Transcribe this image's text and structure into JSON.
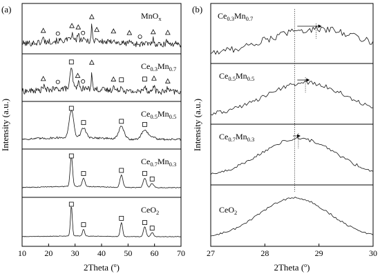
{
  "chart_data": [
    {
      "panel_label": "(a)",
      "type": "line",
      "xlabel_main": "2Theta (",
      "xlabel_sup": "o",
      "xlabel_end": ")",
      "ylabel": "Intensity (a.u.)",
      "xlim": [
        10,
        70
      ],
      "x_ticks": [
        10,
        20,
        30,
        40,
        50,
        60,
        70
      ],
      "series": [
        {
          "name": "MnOx",
          "label_parts": [
            {
              "t": "MnO"
            },
            {
              "t": "x",
              "sub": true
            }
          ],
          "markers": [
            {
              "x": 18.0,
              "symbol": "triangle"
            },
            {
              "x": 23.5,
              "symbol": "circle"
            },
            {
              "x": 28.8,
              "symbol": "triangle"
            },
            {
              "x": 31.2,
              "symbol": "triangle"
            },
            {
              "x": 33.0,
              "symbol": "circle"
            },
            {
              "x": 36.3,
              "symbol": "triangle"
            },
            {
              "x": 38.2,
              "symbol": "triangle"
            },
            {
              "x": 44.5,
              "symbol": "triangle"
            },
            {
              "x": 50.5,
              "symbol": "triangle"
            },
            {
              "x": 54.5,
              "symbol": "circle"
            },
            {
              "x": 59.5,
              "symbol": "triangle"
            },
            {
              "x": 65.0,
              "symbol": "triangle"
            }
          ]
        },
        {
          "name": "Ce0.3Mn0.7",
          "label_parts": [
            {
              "t": "Ce"
            },
            {
              "t": "0.3",
              "sub": true
            },
            {
              "t": "Mn"
            },
            {
              "t": "0.7",
              "sub": true
            }
          ],
          "markers": [
            {
              "x": 18.0,
              "symbol": "triangle"
            },
            {
              "x": 23.5,
              "symbol": "circle"
            },
            {
              "x": 28.6,
              "symbol": "square"
            },
            {
              "x": 31.0,
              "symbol": "triangle"
            },
            {
              "x": 33.0,
              "symbol": "circle"
            },
            {
              "x": 36.3,
              "symbol": "triangle"
            },
            {
              "x": 44.5,
              "symbol": "triangle"
            },
            {
              "x": 47.5,
              "symbol": "square"
            },
            {
              "x": 56.3,
              "symbol": "square"
            },
            {
              "x": 59.8,
              "symbol": "triangle"
            },
            {
              "x": 65.0,
              "symbol": "triangle"
            }
          ]
        },
        {
          "name": "Ce0.5Mn0.5",
          "label_parts": [
            {
              "t": "Ce"
            },
            {
              "t": "0.5",
              "sub": true
            },
            {
              "t": "Mn"
            },
            {
              "t": "0.5",
              "sub": true
            }
          ],
          "markers": [
            {
              "x": 28.6,
              "symbol": "square"
            },
            {
              "x": 33.2,
              "symbol": "square"
            },
            {
              "x": 47.5,
              "symbol": "square"
            },
            {
              "x": 56.3,
              "symbol": "square"
            }
          ]
        },
        {
          "name": "Ce0.7Mn0.3",
          "label_parts": [
            {
              "t": "Ce"
            },
            {
              "t": "0.7",
              "sub": true
            },
            {
              "t": "Mn"
            },
            {
              "t": "0.3",
              "sub": true
            }
          ],
          "markers": [
            {
              "x": 28.6,
              "symbol": "square"
            },
            {
              "x": 33.2,
              "symbol": "square"
            },
            {
              "x": 47.5,
              "symbol": "square"
            },
            {
              "x": 56.3,
              "symbol": "square"
            },
            {
              "x": 59.1,
              "symbol": "square"
            }
          ]
        },
        {
          "name": "CeO2",
          "label_parts": [
            {
              "t": "CeO"
            },
            {
              "t": "2",
              "sub": true
            }
          ],
          "markers": [
            {
              "x": 28.6,
              "symbol": "square"
            },
            {
              "x": 33.2,
              "symbol": "square"
            },
            {
              "x": 47.5,
              "symbol": "square"
            },
            {
              "x": 56.3,
              "symbol": "square"
            },
            {
              "x": 59.1,
              "symbol": "square"
            }
          ]
        }
      ]
    },
    {
      "panel_label": "(b)",
      "type": "line",
      "xlabel_main": "2Theta (",
      "xlabel_sup": "o",
      "xlabel_end": ")",
      "ylabel": "Intensity (a.u.)",
      "xlim": [
        27,
        30
      ],
      "x_ticks": [
        27,
        28,
        29,
        30
      ],
      "reference_line_x": 28.55,
      "series": [
        {
          "name": "Ce0.3Mn0.7",
          "label_parts": [
            {
              "t": "Ce"
            },
            {
              "t": "0.3",
              "sub": true
            },
            {
              "t": "Mn"
            },
            {
              "t": "0.7",
              "sub": true
            }
          ],
          "peak_x": 28.95,
          "shift_arrow": [
            28.6,
            29.05
          ]
        },
        {
          "name": "Ce0.5Mn0.5",
          "label_parts": [
            {
              "t": "Ce"
            },
            {
              "t": "0.5",
              "sub": true
            },
            {
              "t": "Mn"
            },
            {
              "t": "0.5",
              "sub": true
            }
          ],
          "peak_x": 28.75,
          "shift_arrow": [
            28.6,
            28.83
          ]
        },
        {
          "name": "Ce0.7Mn0.3",
          "label_parts": [
            {
              "t": "Ce"
            },
            {
              "t": "0.7",
              "sub": true
            },
            {
              "t": "Mn"
            },
            {
              "t": "0.3",
              "sub": true
            }
          ],
          "peak_x": 28.62,
          "shift_arrow": [
            28.52,
            28.66
          ]
        },
        {
          "name": "CeO2",
          "label_parts": [
            {
              "t": "CeO"
            },
            {
              "t": "2",
              "sub": true
            }
          ],
          "peak_x": 28.55
        }
      ]
    }
  ]
}
